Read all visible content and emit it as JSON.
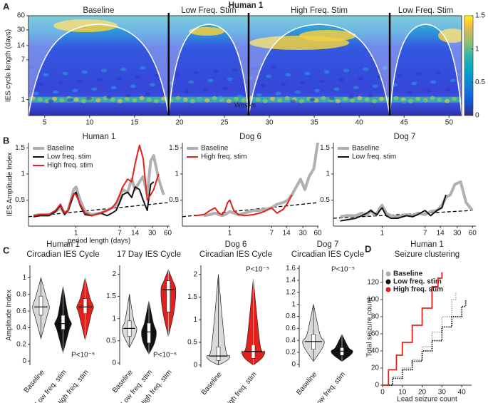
{
  "chart_data": [
    {
      "type": "heatmap",
      "panel": "A",
      "title": "Human 1",
      "xlabel": "Weeks",
      "ylabel": "IES cycle length (days)",
      "xlim": [
        3.2,
        51.4
      ],
      "xticks": [
        5,
        10,
        15,
        20,
        25,
        30,
        35,
        40,
        45,
        50
      ],
      "ylim": [
        0.46,
        60
      ],
      "yticks": [
        1,
        7,
        14,
        30,
        60
      ],
      "log_y": true,
      "phases": [
        {
          "name": "Baseline",
          "start": 3.2,
          "end": 18.8
        },
        {
          "name": "Low Freq. Stim",
          "start": 18.8,
          "end": 27.7
        },
        {
          "name": "High Freq. Stim",
          "start": 27.7,
          "end": 43.4
        },
        {
          "name": "Low Freq. Stim",
          "start": 43.4,
          "end": 51.4
        }
      ],
      "colorbar": {
        "lim": [
          0,
          1.5
        ],
        "ticks": [
          0,
          0.5,
          1,
          1.5
        ]
      }
    },
    {
      "type": "line",
      "panel": "B",
      "title": "Human 1",
      "ylabel": "IES Amplitude Index",
      "xlabel": "period length (days)",
      "log_x": true,
      "xlim": [
        0.12,
        65
      ],
      "xticks": [
        1,
        7,
        14,
        30,
        60
      ],
      "ylim": [
        0,
        1.6
      ],
      "yticks": [
        0.5,
        1,
        1.5
      ],
      "legend": "upper left",
      "x": [
        0.15,
        0.2,
        0.3,
        0.4,
        0.5,
        0.6,
        0.7,
        0.8,
        0.9,
        1,
        1.2,
        1.5,
        2,
        3,
        4,
        5,
        6,
        7,
        8,
        10,
        12,
        14,
        17,
        20,
        24,
        28,
        32,
        40,
        50
      ],
      "series": [
        {
          "name": "Baseline",
          "color": "#b0b0b0",
          "linewidth": 4,
          "values": [
            0.2,
            0.22,
            0.22,
            0.28,
            0.35,
            0.25,
            0.3,
            0.5,
            0.7,
            0.75,
            0.5,
            0.28,
            0.22,
            0.25,
            0.3,
            0.35,
            0.4,
            0.55,
            0.7,
            0.65,
            0.9,
            0.7,
            0.85,
            0.95,
            0.6,
            1.25,
            1.35,
            0.9,
            0.6
          ]
        },
        {
          "name": "Low freq. stim",
          "color": "#111111",
          "linewidth": 2,
          "values": [
            0.18,
            0.2,
            0.2,
            0.28,
            0.4,
            0.22,
            0.3,
            0.45,
            0.6,
            0.65,
            0.4,
            0.22,
            0.2,
            0.25,
            0.2,
            0.25,
            0.3,
            0.45,
            0.6,
            0.65,
            0.55,
            0.75,
            0.7,
            0.5,
            0.3,
            0.8,
            0.85,
            null,
            null
          ]
        },
        {
          "name": "High freq. stim",
          "color": "#e3211c",
          "linewidth": 2,
          "values": [
            0.2,
            0.22,
            0.22,
            0.3,
            0.42,
            0.25,
            0.3,
            0.5,
            0.62,
            0.6,
            0.42,
            0.25,
            0.2,
            0.25,
            0.3,
            0.35,
            0.45,
            0.6,
            0.75,
            0.9,
            0.85,
            1.2,
            1.55,
            1.3,
            0.5,
            0.6,
            0.7,
            1.0,
            null
          ]
        }
      ],
      "reference": {
        "x": [
          0.12,
          60
        ],
        "values": [
          0.18,
          0.45
        ]
      }
    },
    {
      "type": "line",
      "title": "Dog 6",
      "log_x": true,
      "xlim": [
        0.11,
        62
      ],
      "xticks": [
        1,
        7,
        14,
        30,
        60
      ],
      "ylim": [
        0,
        1.6
      ],
      "yticks": [
        0.5,
        1,
        1.5
      ],
      "legend": "upper left",
      "x": [
        0.2,
        0.3,
        0.4,
        0.5,
        0.6,
        0.7,
        0.8,
        0.9,
        1,
        1.2,
        1.5,
        2,
        3,
        4,
        5,
        7,
        9,
        12,
        15,
        18,
        22,
        27,
        33,
        40,
        50,
        60
      ],
      "series": [
        {
          "name": "Baseline",
          "color": "#b0b0b0",
          "linewidth": 4,
          "values": [
            null,
            0.2,
            0.22,
            0.25,
            0.22,
            0.2,
            0.22,
            0.25,
            0.28,
            0.25,
            0.22,
            0.25,
            0.3,
            0.3,
            0.32,
            0.35,
            0.42,
            0.45,
            0.5,
            0.6,
            0.75,
            0.9,
            0.7,
            0.95,
            1.1,
            1.6
          ]
        },
        {
          "name": "High freq. stim",
          "color": "#e3211c",
          "linewidth": 2,
          "values": [
            0.2,
            0.22,
            0.3,
            0.35,
            0.25,
            0.22,
            0.3,
            0.45,
            0.5,
            0.3,
            0.22,
            0.2,
            0.22,
            0.25,
            0.28,
            0.35,
            0.25,
            0.32,
            0.45,
            0.6,
            null,
            null,
            null,
            null,
            null,
            null
          ]
        }
      ],
      "reference": {
        "x": [
          0.11,
          60
        ],
        "values": [
          0.18,
          0.45
        ]
      }
    },
    {
      "type": "line",
      "title": "Dog 7",
      "log_x": true,
      "xlim": [
        0.11,
        70
      ],
      "xticks": [
        1,
        7,
        14,
        30,
        60
      ],
      "ylim": [
        0,
        1.6
      ],
      "yticks": [
        0.5,
        1,
        1.5
      ],
      "legend": "upper left",
      "x": [
        0.15,
        0.2,
        0.3,
        0.4,
        0.5,
        0.6,
        0.7,
        0.8,
        0.9,
        1,
        1.2,
        1.5,
        2,
        3,
        4,
        5,
        7,
        9,
        12,
        15,
        18,
        22,
        27,
        35,
        45,
        60
      ],
      "series": [
        {
          "name": "Baseline",
          "color": "#b0b0b0",
          "linewidth": 4,
          "values": [
            0.18,
            0.2,
            0.2,
            0.25,
            0.2,
            0.3,
            0.22,
            0.25,
            0.35,
            0.4,
            0.25,
            0.2,
            0.18,
            0.22,
            0.2,
            0.25,
            0.22,
            0.28,
            0.3,
            0.4,
            0.55,
            0.6,
            0.8,
            0.85,
            0.45,
            0.3
          ]
        },
        {
          "name": "Low freq. stim",
          "color": "#111111",
          "linewidth": 2,
          "values": [
            0.1,
            0.12,
            0.15,
            0.2,
            0.25,
            0.3,
            0.25,
            0.22,
            0.3,
            0.35,
            0.2,
            0.15,
            0.15,
            0.2,
            0.18,
            0.22,
            0.3,
            0.2,
            0.3,
            0.35,
            0.6,
            null,
            null,
            null,
            null,
            null
          ]
        }
      ],
      "reference": {
        "x": [
          0.11,
          60
        ],
        "values": [
          0.15,
          0.3
        ]
      }
    },
    {
      "type": "violin",
      "panel": "C",
      "title": "Human 1",
      "subtitle": "Circadian IES Cycle",
      "ylabel": "Amplitude Index",
      "ylim": [
        -0.05,
        1.15
      ],
      "yticks": [
        0,
        0.2,
        0.4,
        0.6,
        0.8,
        1
      ],
      "categories": [
        "Baseline",
        "Low freq. stim",
        "High freq. stim"
      ],
      "colors": [
        "#d9d9d9",
        "#111111",
        "#e3211c"
      ],
      "min": [
        0.27,
        0.1,
        0.25
      ],
      "q1": [
        0.55,
        0.38,
        0.57
      ],
      "median": [
        0.65,
        0.45,
        0.65
      ],
      "q3": [
        0.78,
        0.55,
        0.75
      ],
      "max": [
        1.0,
        0.9,
        1.0
      ],
      "annotation": "P<10⁻⁵",
      "annotation_position": "lower right"
    },
    {
      "type": "violin",
      "title": "17 Day IES Cycle",
      "ylim": [
        -0.05,
        2.2
      ],
      "yticks": [
        0,
        0.5,
        1,
        1.5,
        2
      ],
      "categories": [
        "Baseline",
        "Low freq. stim",
        "High freq. stim"
      ],
      "colors": [
        "#d9d9d9",
        "#111111",
        "#e3211c"
      ],
      "min": [
        0.35,
        0.2,
        0.6
      ],
      "q1": [
        0.6,
        0.45,
        1.15
      ],
      "median": [
        0.78,
        0.7,
        1.65
      ],
      "q3": [
        0.95,
        0.9,
        1.85
      ],
      "max": [
        1.55,
        1.4,
        2.1
      ],
      "annotation": "P<10⁻⁵",
      "annotation_position": "lower right"
    },
    {
      "type": "violin",
      "title": "Dog 6",
      "subtitle": "Circadian IES Cycle",
      "ylim": [
        -0.05,
        2.2
      ],
      "yticks": [
        0,
        0.5,
        1,
        1.5,
        2
      ],
      "categories": [
        "Baseline",
        "High freq. stim"
      ],
      "colors": [
        "#d9d9d9",
        "#e3211c"
      ],
      "min": [
        0.0,
        0.0
      ],
      "q1": [
        0.1,
        0.15
      ],
      "median": [
        0.2,
        0.3
      ],
      "q3": [
        0.4,
        0.45
      ],
      "max": [
        2.0,
        1.9
      ],
      "annotation": "P<10⁻⁵",
      "annotation_position": "upper right"
    },
    {
      "type": "violin",
      "title": "Dog 7",
      "subtitle": "Circadian IES Cycle",
      "ylim": [
        -0.05,
        1.65
      ],
      "yticks": [
        0,
        0.2,
        0.4,
        0.6,
        0.8,
        1,
        1.2,
        1.4,
        1.6
      ],
      "categories": [
        "Baseline",
        "Low freq. stim"
      ],
      "colors": [
        "#d9d9d9",
        "#111111"
      ],
      "min": [
        0.05,
        0.05
      ],
      "q1": [
        0.25,
        0.15
      ],
      "median": [
        0.38,
        0.22
      ],
      "q3": [
        0.5,
        0.28
      ],
      "max": [
        1.0,
        0.5
      ],
      "annotation": "P<10⁻⁵",
      "annotation_position": "upper right"
    },
    {
      "type": "step",
      "panel": "D",
      "title": "Human 1",
      "subtitle": "Seizure clustering",
      "xlabel": "Lead seizure count",
      "ylabel": "Total seizure count",
      "xlim": [
        0,
        45
      ],
      "xticks": [
        0,
        10,
        20,
        30,
        40
      ],
      "ylim": [
        0,
        135
      ],
      "yticks": [
        0,
        20,
        40,
        60,
        80,
        100,
        120
      ],
      "legend": "upper left",
      "series": [
        {
          "name": "Baseline",
          "color": "#b0b0b0",
          "x": [
            0,
            5,
            10,
            15,
            20,
            25,
            30,
            35,
            37
          ],
          "values": [
            0,
            10,
            20,
            30,
            45,
            62,
            80,
            100,
            108
          ]
        },
        {
          "name": "Low freq. stim",
          "color": "#111111",
          "x": [
            0,
            5,
            10,
            15,
            20,
            25,
            30,
            35,
            40,
            42
          ],
          "values": [
            0,
            8,
            18,
            28,
            40,
            52,
            68,
            80,
            92,
            100
          ]
        },
        {
          "name": "High freq. stim",
          "color": "#e3211c",
          "x": [
            0,
            3,
            7,
            10,
            15,
            20,
            25,
            28,
            30
          ],
          "values": [
            0,
            18,
            35,
            50,
            70,
            90,
            115,
            125,
            132
          ]
        }
      ]
    }
  ]
}
